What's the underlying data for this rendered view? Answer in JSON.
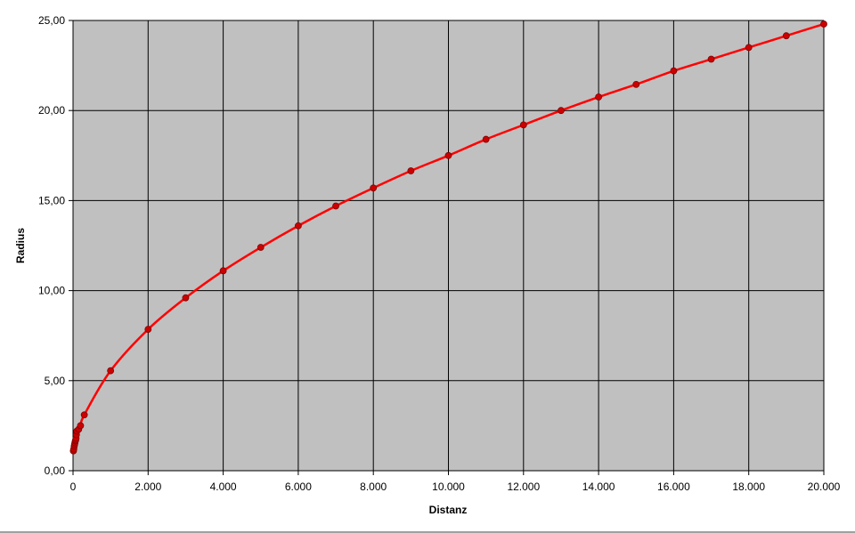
{
  "chart_data": {
    "type": "line",
    "title": "",
    "xlabel": "Distanz",
    "ylabel": "Radius",
    "xlim": [
      0,
      20000
    ],
    "ylim": [
      0,
      25
    ],
    "x_ticks": [
      0,
      2000,
      4000,
      6000,
      8000,
      10000,
      12000,
      14000,
      16000,
      18000,
      20000
    ],
    "x_tick_labels": [
      "0",
      "2.000",
      "4.000",
      "6.000",
      "8.000",
      "10.000",
      "12.000",
      "14.000",
      "16.000",
      "18.000",
      "20.000"
    ],
    "y_ticks": [
      0,
      5,
      10,
      15,
      20,
      25
    ],
    "y_tick_labels": [
      "0,00",
      "5,00",
      "10,00",
      "15,00",
      "20,00",
      "25,00"
    ],
    "grid": true,
    "legend": "none",
    "colors": {
      "plot_background": "#c0c0c0",
      "series": "#ff0000",
      "marker": "#cc0000",
      "grid": "#000000"
    },
    "series": [
      {
        "x": [
          10,
          20,
          30,
          40,
          50,
          60,
          70,
          80,
          90,
          100,
          150,
          200,
          300,
          1000,
          2000,
          3000,
          4000,
          5000,
          6000,
          7000,
          8000,
          9000,
          10000,
          11000,
          12000,
          13000,
          14000,
          15000,
          16000,
          17000,
          18000,
          19000,
          20000
        ],
        "y": [
          1.1,
          1.2,
          1.35,
          1.45,
          1.55,
          1.65,
          1.7,
          1.8,
          2.0,
          2.2,
          2.3,
          2.5,
          3.1,
          5.55,
          7.85,
          9.6,
          11.1,
          12.4,
          13.6,
          14.7,
          15.7,
          16.65,
          17.5,
          18.4,
          19.2,
          20.0,
          20.75,
          21.45,
          22.2,
          22.85,
          23.5,
          24.15,
          24.8
        ]
      }
    ]
  }
}
